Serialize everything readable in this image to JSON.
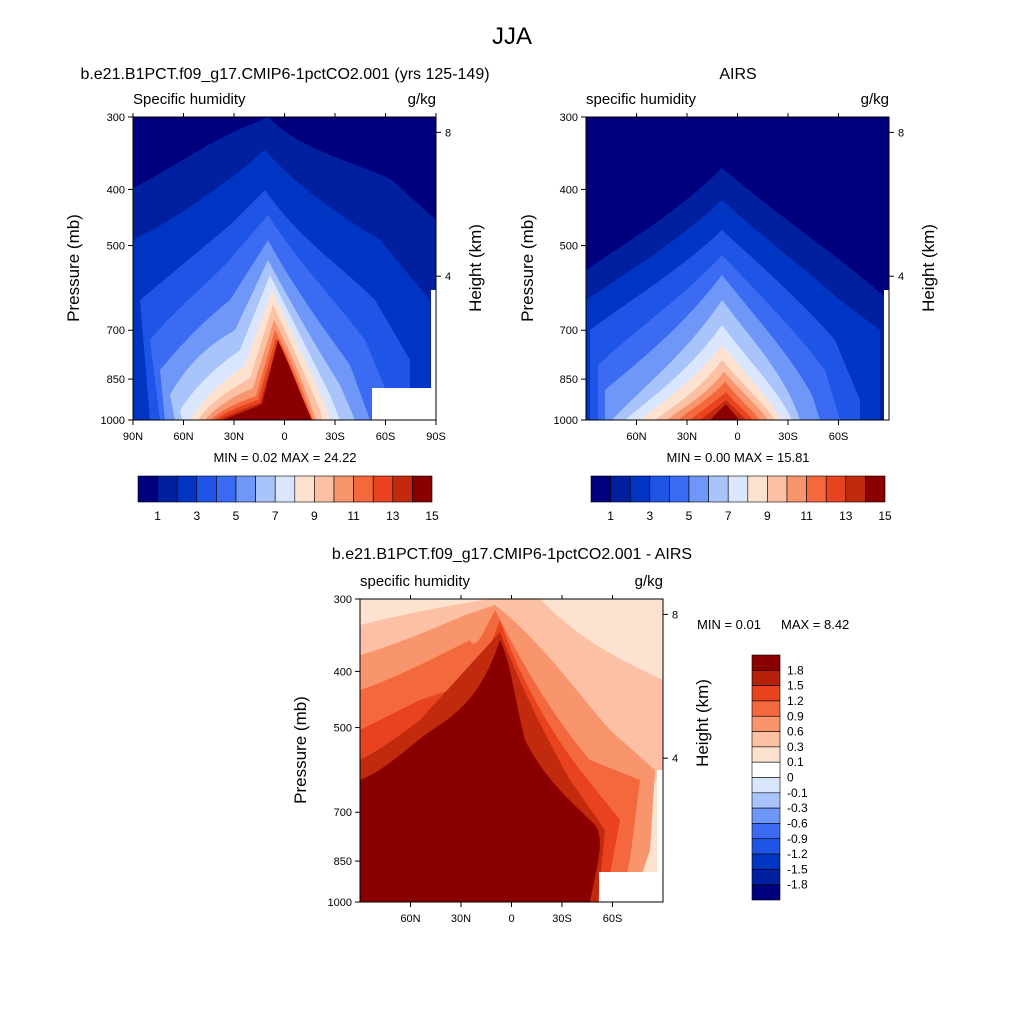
{
  "figure": {
    "title": "JJA"
  },
  "colors": {
    "abs_scale": [
      "#00007f",
      "#00209f",
      "#0035c4",
      "#1e55e6",
      "#3b6bf3",
      "#6e97f7",
      "#a8c4fb",
      "#d9e6fd",
      "#fde3cf",
      "#fcc0a4",
      "#f9956d",
      "#f4683d",
      "#e8431e",
      "#c22a0e",
      "#8a0000"
    ],
    "diff_scale": [
      "#8a0000",
      "#b5200a",
      "#e8431e",
      "#f4683d",
      "#f9956d",
      "#fcc0a4",
      "#fde3cf",
      "#ffffff",
      "#d9e6fd",
      "#a8c4fb",
      "#6e97f7",
      "#3b6bf3",
      "#1e55e6",
      "#0035c4",
      "#00209f",
      "#00007f"
    ]
  },
  "chart_data": [
    {
      "type": "heatmap",
      "panel": "model",
      "title": "b.e21.B1PCT.f09_g17.CMIP6-1pctCO2.001 (yrs 125-149)",
      "subtitle_left": "Specific humidity",
      "subtitle_right": "g/kg",
      "ylabel": "Pressure (mb)",
      "y2label": "Height (km)",
      "yticks": [
        "300",
        "400",
        "500",
        "700",
        "850",
        "1000"
      ],
      "y2ticks": [
        "8",
        "4"
      ],
      "xticks": [
        "90N",
        "60N",
        "30N",
        "0",
        "30S",
        "60S",
        "90S"
      ],
      "stats": "MIN =   0.02  MAX =  24.22",
      "colorbar_labels": [
        "1",
        "3",
        "5",
        "7",
        "9",
        "11",
        "13",
        "15"
      ],
      "ylim": [
        1000,
        300
      ],
      "xlim": [
        "90N",
        "90S"
      ]
    },
    {
      "type": "heatmap",
      "panel": "obs",
      "title": "AIRS",
      "subtitle_left": "specific humidity",
      "subtitle_right": "g/kg",
      "ylabel": "Pressure (mb)",
      "y2label": "Height (km)",
      "yticks": [
        "300",
        "400",
        "500",
        "700",
        "850",
        "1000"
      ],
      "y2ticks": [
        "8",
        "4"
      ],
      "xticks": [
        "60N",
        "30N",
        "0",
        "30S",
        "60S"
      ],
      "stats": "MIN =   0.00  MAX =  15.81",
      "colorbar_labels": [
        "1",
        "3",
        "5",
        "7",
        "9",
        "11",
        "13",
        "15"
      ],
      "ylim": [
        1000,
        300
      ]
    },
    {
      "type": "heatmap",
      "panel": "difference",
      "title": "b.e21.B1PCT.f09_g17.CMIP6-1pctCO2.001 - AIRS",
      "subtitle_left": "specific humidity",
      "subtitle_right": "g/kg",
      "ylabel": "Pressure (mb)",
      "y2label": "Height (km)",
      "yticks": [
        "300",
        "400",
        "500",
        "700",
        "850",
        "1000"
      ],
      "y2ticks": [
        "8",
        "4"
      ],
      "xticks": [
        "60N",
        "30N",
        "0",
        "30S",
        "60S"
      ],
      "stats_min": "MIN =   0.01",
      "stats_max": "MAX =   8.42",
      "colorbar_labels": [
        "1.8",
        "1.5",
        "1.2",
        "0.9",
        "0.6",
        "0.3",
        "0.1",
        "0",
        "-0.1",
        "-0.3",
        "-0.6",
        "-0.9",
        "-1.2",
        "-1.5",
        "-1.8"
      ],
      "ylim": [
        1000,
        300
      ]
    }
  ]
}
